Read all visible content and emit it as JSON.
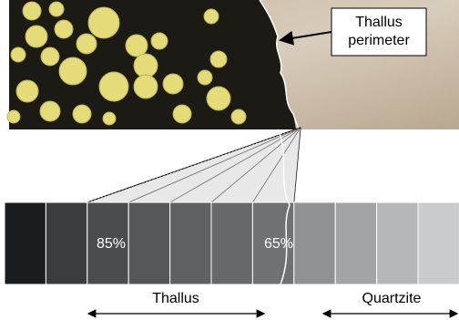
{
  "callout": {
    "lines": [
      "Thallus",
      "perimeter"
    ]
  },
  "strip": {
    "labels": [
      "85%",
      "65%"
    ]
  },
  "regions": {
    "thallus": "Thallus",
    "quartzite": "Quartzite"
  }
}
